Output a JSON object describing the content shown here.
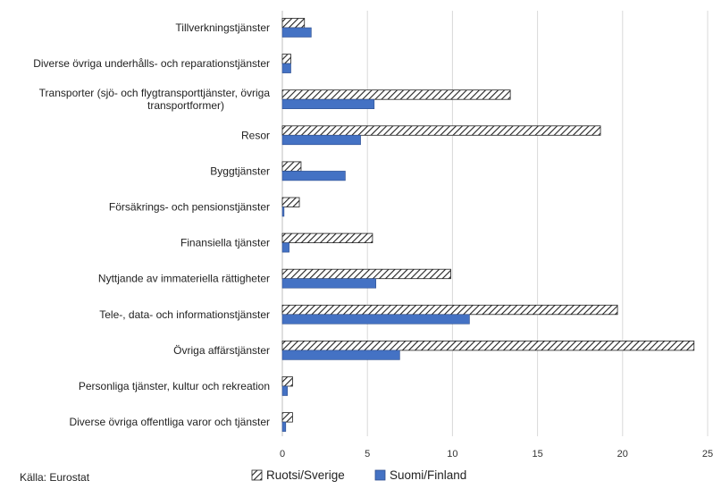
{
  "chart_data": {
    "type": "bar",
    "orientation": "horizontal",
    "categories": [
      [
        "Tillverkningstjänster"
      ],
      [
        "Diverse övriga underhålls- och reparationstjänster"
      ],
      [
        "Transporter (sjö- och flygtransporttjänster, övriga",
        "transportformer)"
      ],
      [
        "Resor"
      ],
      [
        "Byggtjänster"
      ],
      [
        "Försäkrings- och pensionstjänster"
      ],
      [
        "Finansiella tjänster"
      ],
      [
        "Nyttjande av immateriella rättigheter"
      ],
      [
        "Tele-, data- och informationstjänster"
      ],
      [
        "Övriga affärstjänster"
      ],
      [
        "Personliga tjänster, kultur och rekreation"
      ],
      [
        "Diverse övriga offentliga varor och tjänster"
      ]
    ],
    "series": [
      {
        "name": "Ruotsi/Sverige",
        "pattern": "hatched",
        "color": "#222222",
        "values": [
          1.3,
          0.5,
          13.4,
          18.7,
          1.1,
          1.0,
          5.3,
          9.9,
          19.7,
          24.2,
          0.6,
          0.6
        ]
      },
      {
        "name": "Suomi/Finland",
        "pattern": "solid",
        "color": "#4472C4",
        "values": [
          1.7,
          0.5,
          5.4,
          4.6,
          3.7,
          0.1,
          0.4,
          5.5,
          11.0,
          6.9,
          0.3,
          0.2
        ]
      }
    ],
    "xlim": [
      0,
      25
    ],
    "xticks": [
      0,
      5,
      10,
      15,
      20,
      25
    ],
    "grid": "vertical",
    "legend_position": "bottom",
    "source": "Källa: Eurostat"
  }
}
